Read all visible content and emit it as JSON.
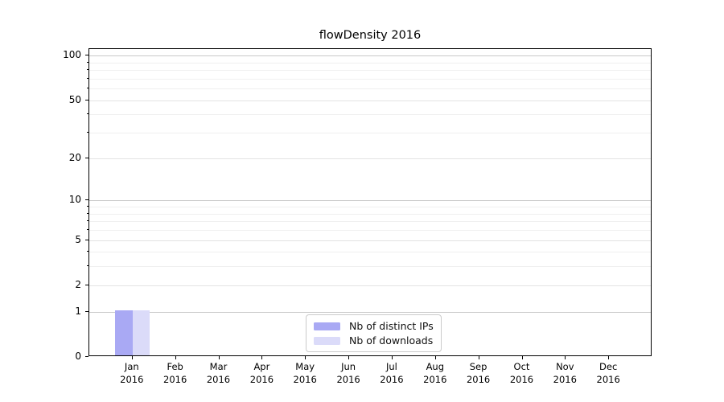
{
  "chart_data": {
    "type": "bar",
    "title": "flowDensity 2016",
    "categories": [
      "Jan\n2016",
      "Feb\n2016",
      "Mar\n2016",
      "Apr\n2016",
      "May\n2016",
      "Jun\n2016",
      "Jul\n2016",
      "Aug\n2016",
      "Sep\n2016",
      "Oct\n2016",
      "Nov\n2016",
      "Dec\n2016"
    ],
    "series": [
      {
        "name": "Nb of distinct IPs",
        "color": "#a9a9f4",
        "values": [
          1,
          0,
          0,
          0,
          0,
          0,
          0,
          0,
          0,
          0,
          0,
          0
        ]
      },
      {
        "name": "Nb of downloads",
        "color": "#dbdbf9",
        "values": [
          1,
          0,
          0,
          0,
          0,
          0,
          0,
          0,
          0,
          0,
          0,
          0
        ]
      }
    ],
    "xlabel": "",
    "ylabel": "",
    "y_scale": "log1p",
    "y_ticks": [
      0,
      1,
      2,
      5,
      10,
      20,
      50,
      100
    ],
    "y_minor_ticks": [
      3,
      4,
      6,
      7,
      8,
      9,
      30,
      40,
      60,
      70,
      80,
      90
    ],
    "ylim": [
      0,
      110
    ],
    "grid": {
      "decade_color": "#c9c9c9",
      "major_color": "#e3e3e3",
      "minor_color": "#f0f0f0"
    },
    "legend": {
      "position": "lower-center"
    }
  }
}
